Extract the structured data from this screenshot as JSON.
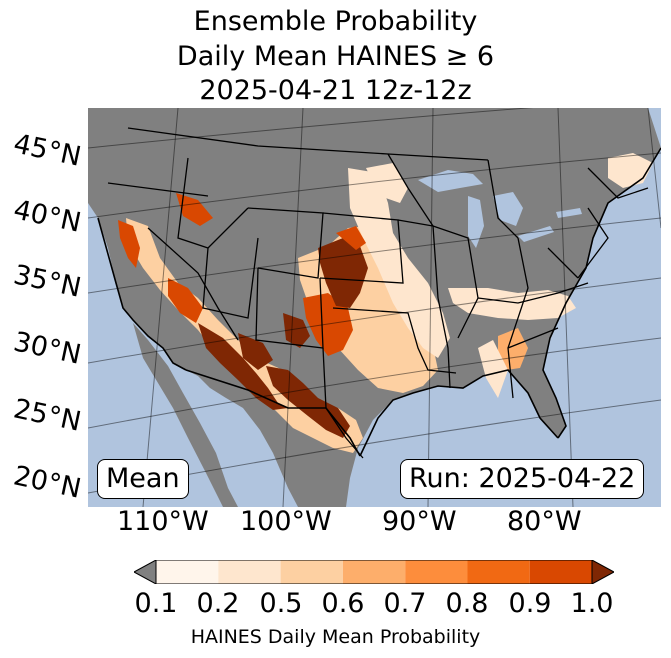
{
  "title": {
    "line1": "Ensemble Probability",
    "line2": "Daily Mean HAINES ≥ 6",
    "line3": "2025-04-21 12z-12z"
  },
  "map": {
    "latitude_labels": [
      "45°N",
      "40°N",
      "35°N",
      "30°N",
      "25°N",
      "20°N"
    ],
    "longitude_labels": [
      "110°W",
      "100°W",
      "90°W",
      "80°W"
    ],
    "colors": {
      "ocean": "#b0c4de",
      "land_masked": "#808080",
      "lake": "#b0c4de"
    }
  },
  "stat_label": "Mean",
  "run_label": "Run: 2025-04-22",
  "colorbar": {
    "label": "HAINES Daily Mean Probability",
    "ticks": [
      "0.1",
      "0.2",
      "0.5",
      "0.6",
      "0.7",
      "0.8",
      "0.9",
      "1.0"
    ],
    "under_color": "#808080",
    "over_color": "#7f2704",
    "colors": [
      "#fff5eb",
      "#fee6ce",
      "#fdd0a2",
      "#fdae6b",
      "#fd8d3c",
      "#f16913",
      "#d94801"
    ]
  }
}
